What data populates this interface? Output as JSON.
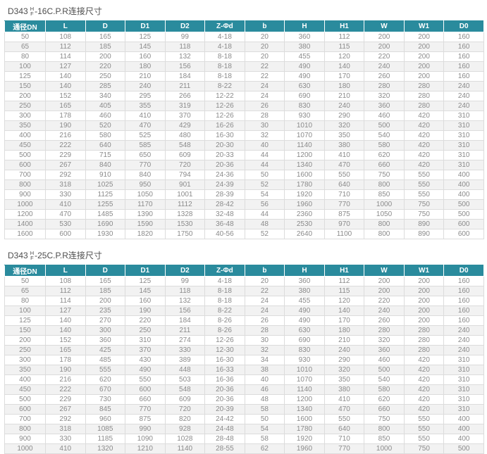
{
  "colors": {
    "header_bg": "#2a8b9d",
    "header_text": "#ffffff",
    "row_alt": "#f2f2f2",
    "cell_text": "#8a8a8a",
    "title_text": "#4d4d4d",
    "border": "#dcdcdc"
  },
  "tables": [
    {
      "title": {
        "prefix": "D343",
        "frac_top": "H",
        "frac_bottom": "F",
        "suffix": "-16C.P.R连接尺寸"
      },
      "columns": [
        "通径DN",
        "L",
        "D",
        "D1",
        "D2",
        "Z-Φd",
        "b",
        "H",
        "H1",
        "W",
        "W1",
        "D0"
      ],
      "rows": [
        [
          "50",
          "108",
          "165",
          "125",
          "99",
          "4-18",
          "20",
          "360",
          "112",
          "200",
          "200",
          "160"
        ],
        [
          "65",
          "112",
          "185",
          "145",
          "118",
          "4-18",
          "20",
          "380",
          "115",
          "200",
          "200",
          "160"
        ],
        [
          "80",
          "114",
          "200",
          "160",
          "132",
          "8-18",
          "20",
          "455",
          "120",
          "220",
          "200",
          "160"
        ],
        [
          "100",
          "127",
          "220",
          "180",
          "156",
          "8-18",
          "22",
          "490",
          "140",
          "240",
          "200",
          "160"
        ],
        [
          "125",
          "140",
          "250",
          "210",
          "184",
          "8-18",
          "22",
          "490",
          "170",
          "260",
          "200",
          "160"
        ],
        [
          "150",
          "140",
          "285",
          "240",
          "211",
          "8-22",
          "24",
          "630",
          "180",
          "280",
          "280",
          "240"
        ],
        [
          "200",
          "152",
          "340",
          "295",
          "266",
          "12-22",
          "24",
          "690",
          "210",
          "320",
          "280",
          "240"
        ],
        [
          "250",
          "165",
          "405",
          "355",
          "319",
          "12-26",
          "26",
          "830",
          "240",
          "360",
          "280",
          "240"
        ],
        [
          "300",
          "178",
          "460",
          "410",
          "370",
          "12-26",
          "28",
          "930",
          "290",
          "460",
          "420",
          "310"
        ],
        [
          "350",
          "190",
          "520",
          "470",
          "429",
          "16-26",
          "30",
          "1010",
          "320",
          "500",
          "420",
          "310"
        ],
        [
          "400",
          "216",
          "580",
          "525",
          "480",
          "16-30",
          "32",
          "1070",
          "350",
          "540",
          "420",
          "310"
        ],
        [
          "450",
          "222",
          "640",
          "585",
          "548",
          "20-30",
          "40",
          "1140",
          "380",
          "580",
          "420",
          "310"
        ],
        [
          "500",
          "229",
          "715",
          "650",
          "609",
          "20-33",
          "44",
          "1200",
          "410",
          "620",
          "420",
          "310"
        ],
        [
          "600",
          "267",
          "840",
          "770",
          "720",
          "20-36",
          "44",
          "1340",
          "470",
          "660",
          "420",
          "310"
        ],
        [
          "700",
          "292",
          "910",
          "840",
          "794",
          "24-36",
          "50",
          "1600",
          "550",
          "750",
          "550",
          "400"
        ],
        [
          "800",
          "318",
          "1025",
          "950",
          "901",
          "24-39",
          "52",
          "1780",
          "640",
          "800",
          "550",
          "400"
        ],
        [
          "900",
          "330",
          "1125",
          "1050",
          "1001",
          "28-39",
          "54",
          "1920",
          "710",
          "850",
          "550",
          "400"
        ],
        [
          "1000",
          "410",
          "1255",
          "1170",
          "1112",
          "28-42",
          "56",
          "1960",
          "770",
          "1000",
          "750",
          "500"
        ],
        [
          "1200",
          "470",
          "1485",
          "1390",
          "1328",
          "32-48",
          "44",
          "2360",
          "875",
          "1050",
          "750",
          "500"
        ],
        [
          "1400",
          "530",
          "1690",
          "1590",
          "1530",
          "36-48",
          "48",
          "2530",
          "970",
          "800",
          "890",
          "600"
        ],
        [
          "1600",
          "600",
          "1930",
          "1820",
          "1750",
          "40-56",
          "52",
          "2640",
          "1100",
          "800",
          "890",
          "600"
        ]
      ]
    },
    {
      "title": {
        "prefix": "D343",
        "frac_top": "H",
        "frac_bottom": "F",
        "suffix": "-25C.P.R连接尺寸"
      },
      "columns": [
        "通径DN",
        "L",
        "D",
        "D1",
        "D2",
        "Z-Φd",
        "b",
        "H",
        "H1",
        "W",
        "W1",
        "D0"
      ],
      "rows": [
        [
          "50",
          "108",
          "165",
          "125",
          "99",
          "4-18",
          "20",
          "360",
          "112",
          "200",
          "200",
          "160"
        ],
        [
          "65",
          "112",
          "185",
          "145",
          "118",
          "8-18",
          "22",
          "380",
          "115",
          "200",
          "200",
          "160"
        ],
        [
          "80",
          "114",
          "200",
          "160",
          "132",
          "8-18",
          "24",
          "455",
          "120",
          "220",
          "200",
          "160"
        ],
        [
          "100",
          "127",
          "235",
          "190",
          "156",
          "8-22",
          "24",
          "490",
          "140",
          "240",
          "200",
          "160"
        ],
        [
          "125",
          "140",
          "270",
          "220",
          "184",
          "8-26",
          "26",
          "490",
          "170",
          "260",
          "200",
          "160"
        ],
        [
          "150",
          "140",
          "300",
          "250",
          "211",
          "8-26",
          "28",
          "630",
          "180",
          "280",
          "280",
          "240"
        ],
        [
          "200",
          "152",
          "360",
          "310",
          "274",
          "12-26",
          "30",
          "690",
          "210",
          "320",
          "280",
          "240"
        ],
        [
          "250",
          "165",
          "425",
          "370",
          "330",
          "12-30",
          "32",
          "830",
          "240",
          "360",
          "280",
          "240"
        ],
        [
          "300",
          "178",
          "485",
          "430",
          "389",
          "16-30",
          "34",
          "930",
          "290",
          "460",
          "420",
          "310"
        ],
        [
          "350",
          "190",
          "555",
          "490",
          "448",
          "16-33",
          "38",
          "1010",
          "320",
          "500",
          "420",
          "310"
        ],
        [
          "400",
          "216",
          "620",
          "550",
          "503",
          "16-36",
          "40",
          "1070",
          "350",
          "540",
          "420",
          "310"
        ],
        [
          "450",
          "222",
          "670",
          "600",
          "548",
          "20-36",
          "46",
          "1140",
          "380",
          "580",
          "420",
          "310"
        ],
        [
          "500",
          "229",
          "730",
          "660",
          "609",
          "20-36",
          "48",
          "1200",
          "410",
          "620",
          "420",
          "310"
        ],
        [
          "600",
          "267",
          "845",
          "770",
          "720",
          "20-39",
          "58",
          "1340",
          "470",
          "660",
          "420",
          "310"
        ],
        [
          "700",
          "292",
          "960",
          "875",
          "820",
          "24-42",
          "50",
          "1600",
          "550",
          "750",
          "550",
          "400"
        ],
        [
          "800",
          "318",
          "1085",
          "990",
          "928",
          "24-48",
          "54",
          "1780",
          "640",
          "800",
          "550",
          "400"
        ],
        [
          "900",
          "330",
          "1185",
          "1090",
          "1028",
          "28-48",
          "58",
          "1920",
          "710",
          "850",
          "550",
          "400"
        ],
        [
          "1000",
          "410",
          "1320",
          "1210",
          "1140",
          "28-55",
          "62",
          "1960",
          "770",
          "1000",
          "750",
          "500"
        ]
      ]
    }
  ]
}
